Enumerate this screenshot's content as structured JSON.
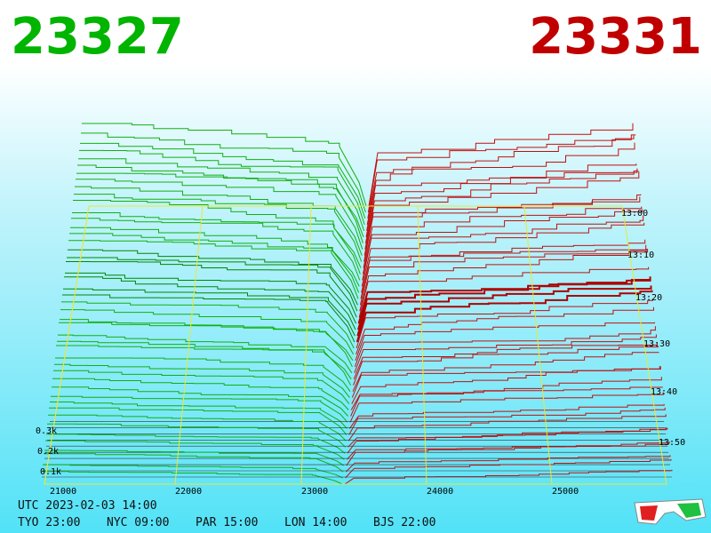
{
  "header": {
    "bid": "23327",
    "ask": "23331"
  },
  "price_axis": [
    "21000",
    "22000",
    "23000",
    "24000",
    "25000"
  ],
  "depth_axis": [
    "0.3k",
    "0.2k",
    "0.1k"
  ],
  "time_axis": [
    "13:00",
    "13:10",
    "13:20",
    "13:30",
    "13:40",
    "13:50"
  ],
  "footer": {
    "utc": "UTC 2023-02-03 14:00",
    "clocks": [
      "TYO 23:00",
      "NYC 09:00",
      "PAR 15:00",
      "LON 14:00",
      "BJS 22:00"
    ]
  }
}
